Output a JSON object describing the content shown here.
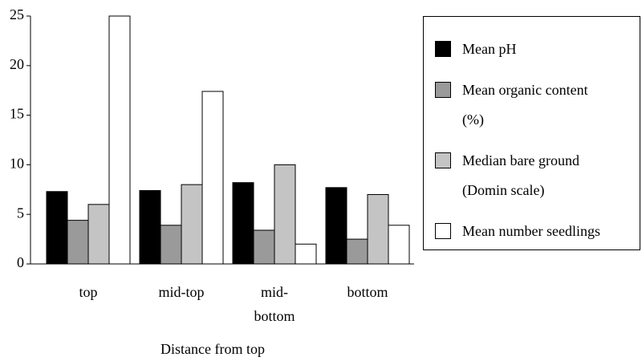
{
  "chart_data": {
    "type": "bar",
    "x_label": "Distance from top",
    "categories": [
      "top",
      "mid-top",
      "mid-bottom",
      "bottom"
    ],
    "series": [
      {
        "name": "Mean pH",
        "color": "#000000",
        "values": [
          7.3,
          7.4,
          8.2,
          7.7
        ]
      },
      {
        "name": "Mean organic content (%)",
        "color": "#9a9a9a",
        "values": [
          4.4,
          3.9,
          3.4,
          2.5
        ]
      },
      {
        "name": "Median bare ground (Domin scale)",
        "color": "#c4c4c4",
        "values": [
          6,
          8,
          10,
          7
        ]
      },
      {
        "name": "Mean number seedlings",
        "color": "#ffffff",
        "values": [
          25,
          17.4,
          2,
          3.9
        ]
      }
    ],
    "ylim": [
      0,
      25
    ],
    "yticks": [
      0,
      5,
      10,
      15,
      20,
      25
    ],
    "grid": false,
    "legend": "right"
  }
}
